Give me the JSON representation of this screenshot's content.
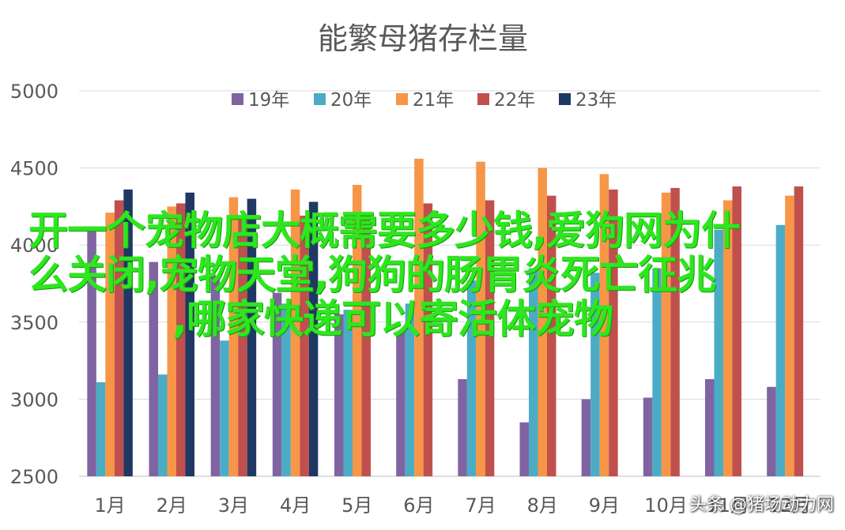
{
  "chart_data": {
    "type": "bar",
    "title": "能繁母猪存栏量",
    "categories": [
      "1月",
      "2月",
      "3月",
      "4月",
      "5月",
      "6月",
      "7月",
      "8月",
      "9月",
      "10月",
      "11月",
      "12月"
    ],
    "ylim": [
      2500,
      5000
    ],
    "yticks": [
      "5000",
      "4500",
      "4000",
      "3500",
      "3000",
      "2500"
    ],
    "grid": true,
    "legend_position": "top",
    "series": [
      {
        "name": "19年",
        "color": "#8064a2",
        "values": [
          4100,
          3890,
          3800,
          3690,
          3550,
          3440,
          3130,
          2850,
          3000,
          3010,
          3130,
          3080
        ]
      },
      {
        "name": "20年",
        "color": "#4bacc6",
        "values": [
          3110,
          3160,
          3380,
          3620,
          3580,
          3620,
          3770,
          3850,
          3820,
          3850,
          4100,
          4130
        ]
      },
      {
        "name": "21年",
        "color": "#f79646",
        "values": [
          4210,
          4250,
          4310,
          4360,
          4390,
          4560,
          4540,
          4500,
          4460,
          4340,
          4290,
          4320
        ]
      },
      {
        "name": "22年",
        "color": "#c0504d",
        "values": [
          4290,
          4270,
          4190,
          4190,
          4190,
          4270,
          4290,
          4320,
          4360,
          4370,
          4380,
          4380
        ]
      },
      {
        "name": "23年",
        "color": "#1f3864",
        "values": [
          4360,
          4340,
          4300,
          4280,
          null,
          null,
          null,
          null,
          null,
          null,
          null,
          null
        ]
      }
    ]
  },
  "overlay": {
    "line1": "开一个宠物店大概需要多少钱,爱狗网为什",
    "line2": "么关闭,宠物天堂,狗狗的肠胃炎死亡征兆",
    "line3": ",哪家快递可以寄活体宠物",
    "color": "#2ee61f"
  },
  "watermark": {
    "text": "头条 @猪场动力网"
  }
}
